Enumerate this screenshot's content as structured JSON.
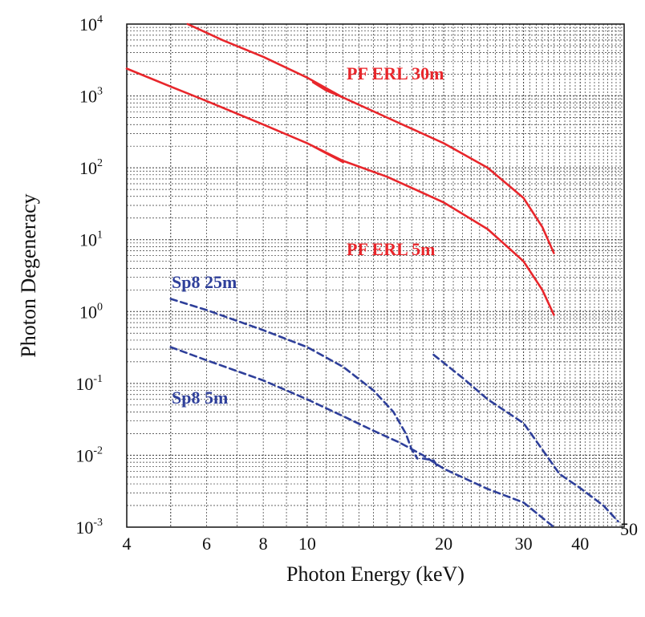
{
  "chart_data": {
    "type": "line",
    "xlabel": "Photon Energy (keV)",
    "ylabel": "Photon Degeneracy",
    "xscale": "log",
    "yscale": "log",
    "xlim": [
      4,
      50
    ],
    "ylim": [
      0.001,
      10000
    ],
    "grid": true,
    "x_ticks": [
      {
        "value": 4,
        "label": "4"
      },
      {
        "value": 6,
        "label": "6"
      },
      {
        "value": 8,
        "label": "8"
      },
      {
        "value": 10,
        "label": "10"
      },
      {
        "value": 20,
        "label": "20"
      },
      {
        "value": 30,
        "label": "30"
      },
      {
        "value": 40,
        "label": "40"
      },
      {
        "value": 50,
        "label": "50"
      }
    ],
    "y_ticks": [
      {
        "value": 0.001,
        "base": "10",
        "exp": "-3"
      },
      {
        "value": 0.01,
        "base": "10",
        "exp": "-2"
      },
      {
        "value": 0.1,
        "base": "10",
        "exp": "-1"
      },
      {
        "value": 1,
        "base": "10",
        "exp": "0"
      },
      {
        "value": 10,
        "base": "10",
        "exp": "1"
      },
      {
        "value": 100,
        "base": "10",
        "exp": "2"
      },
      {
        "value": 1000,
        "base": "10",
        "exp": "3"
      },
      {
        "value": 10000,
        "base": "10",
        "exp": "4"
      }
    ],
    "annotations": [
      {
        "text": "PF ERL 30m",
        "color": "#e8262b"
      },
      {
        "text": "PF ERL 5m",
        "color": "#e8262b"
      },
      {
        "text": "Sp8 25m",
        "color": "#2e3f9a"
      },
      {
        "text": "Sp8 5m",
        "color": "#2e3f9a"
      }
    ],
    "series": [
      {
        "color": "#e8262b",
        "style": "solid",
        "points": [
          [
            5.45,
            10000
          ],
          [
            6.5,
            6000
          ],
          [
            8,
            3500
          ],
          [
            10,
            1800
          ],
          [
            12,
            950
          ],
          [
            15,
            500
          ],
          [
            20,
            220
          ],
          [
            25,
            100
          ],
          [
            30,
            38
          ],
          [
            33,
            15
          ],
          [
            35,
            6.5
          ]
        ]
      },
      {
        "color": "#e8262b",
        "style": "solid",
        "points": [
          [
            10.3,
            1550
          ],
          [
            11,
            1200
          ],
          [
            12,
            950
          ]
        ]
      },
      {
        "color": "#e8262b",
        "style": "solid",
        "points": [
          [
            4,
            2400
          ],
          [
            5,
            1350
          ],
          [
            6,
            850
          ],
          [
            8,
            400
          ],
          [
            10,
            220
          ],
          [
            12,
            125
          ],
          [
            15,
            75
          ],
          [
            20,
            33
          ],
          [
            25,
            14
          ],
          [
            30,
            5
          ],
          [
            33,
            2
          ],
          [
            35,
            0.9
          ]
        ]
      },
      {
        "color": "#e8262b",
        "style": "solid",
        "points": [
          [
            10.3,
            200
          ],
          [
            11,
            160
          ],
          [
            12,
            120
          ]
        ]
      },
      {
        "color": "#2e3f9a",
        "style": "dashed",
        "points": [
          [
            5,
            1.5
          ],
          [
            6,
            1.05
          ],
          [
            8,
            0.55
          ],
          [
            10,
            0.32
          ],
          [
            12,
            0.17
          ],
          [
            14,
            0.08
          ],
          [
            15.5,
            0.04
          ],
          [
            16.5,
            0.02
          ],
          [
            17,
            0.012
          ],
          [
            17.5,
            0.009
          ]
        ]
      },
      {
        "color": "#2e3f9a",
        "style": "dashed",
        "points": [
          [
            5,
            0.32
          ],
          [
            6,
            0.21
          ],
          [
            8,
            0.11
          ],
          [
            10,
            0.06
          ],
          [
            12,
            0.035
          ],
          [
            14,
            0.022
          ],
          [
            16,
            0.015
          ],
          [
            18,
            0.01
          ],
          [
            20,
            0.0065
          ],
          [
            25,
            0.0034
          ],
          [
            30,
            0.0022
          ],
          [
            35,
            0.001
          ]
        ]
      },
      {
        "color": "#2e3f9a",
        "style": "dashed",
        "points": [
          [
            19,
            0.25
          ],
          [
            22,
            0.12
          ],
          [
            25,
            0.06
          ],
          [
            30,
            0.028
          ],
          [
            33,
            0.012
          ],
          [
            36,
            0.0055
          ],
          [
            40,
            0.0035
          ],
          [
            45,
            0.002
          ],
          [
            48.5,
            0.0012
          ]
        ]
      },
      {
        "color": "#2e3f9a",
        "style": "dashed",
        "points": [
          [
            18,
            0.009
          ],
          [
            19,
            0.0085
          ],
          [
            19.5,
            0.0065
          ]
        ]
      }
    ]
  }
}
